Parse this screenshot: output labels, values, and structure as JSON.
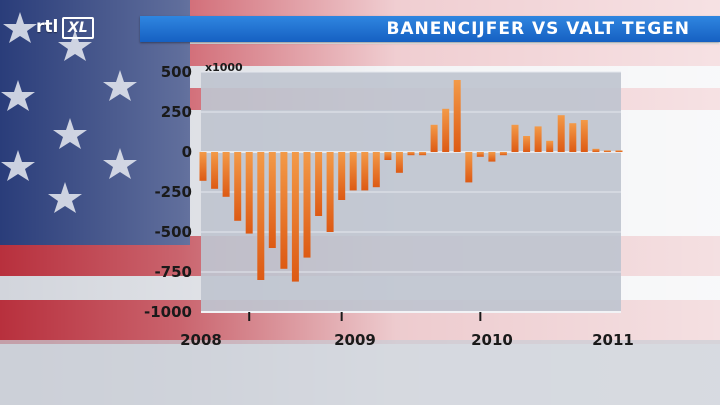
{
  "broadcast": {
    "logo_rtl": "rtl",
    "logo_xl": "XL",
    "title": "BANENCIJFER VS VALT TEGEN"
  },
  "colors": {
    "bar_top": "#f08a3a",
    "bar_bottom": "#e0601a",
    "plot_background": "#bfc4cf",
    "gridline": "#e6e8ee",
    "title_bar": "#1f6fd0"
  },
  "chart_data": {
    "type": "bar",
    "title": "",
    "unit_label": "x1000",
    "xlabel": "",
    "ylabel": "",
    "ylim": [
      -1000,
      500
    ],
    "yticks": [
      500,
      250,
      0,
      -250,
      -500,
      -750,
      -1000
    ],
    "ytick_labels": [
      "500",
      "250",
      "0",
      "-250",
      "-500",
      "-750",
      "-1000"
    ],
    "xtick_labels": [
      "2008",
      "2009",
      "2010",
      "2011"
    ],
    "grid": true,
    "legend": "none",
    "x": [
      "2008-01",
      "2008-02",
      "2008-03",
      "2008-04",
      "2008-05",
      "2008-06",
      "2008-07",
      "2008-08",
      "2008-09",
      "2008-10",
      "2008-11",
      "2008-12",
      "2009-01",
      "2009-02",
      "2009-03",
      "2009-04",
      "2009-05",
      "2009-06",
      "2009-07",
      "2009-08",
      "2009-09",
      "2009-10",
      "2009-11",
      "2009-12",
      "2010-01",
      "2010-02",
      "2010-03",
      "2010-04",
      "2010-05",
      "2010-06",
      "2010-07",
      "2010-08",
      "2010-09",
      "2010-10",
      "2010-11",
      "2010-12",
      "2011-01"
    ],
    "series": [
      {
        "values": [
          -180,
          -230,
          -280,
          -430,
          -510,
          -800,
          -600,
          -730,
          -810,
          -660,
          -400,
          -500,
          -300,
          -240,
          -240,
          -220,
          -50,
          -130,
          -20,
          -20,
          170,
          270,
          450,
          -190,
          -30,
          -60,
          -20,
          170,
          100,
          160,
          70,
          230,
          180,
          200,
          20,
          10,
          10
        ]
      }
    ]
  }
}
